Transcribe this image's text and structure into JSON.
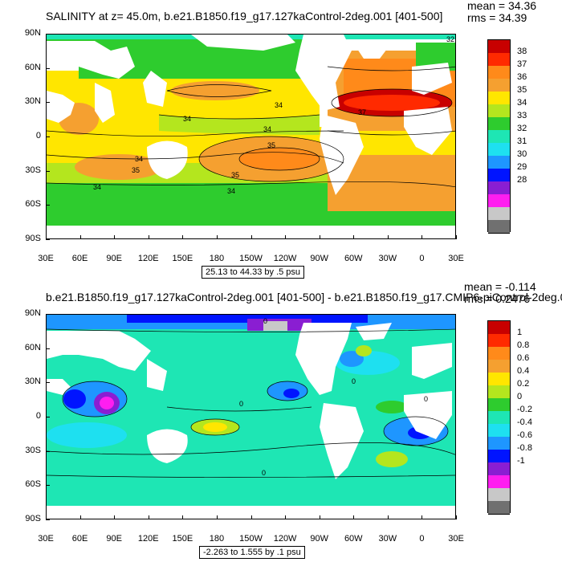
{
  "panels": [
    {
      "title": "SALINITY at z=  45.0m, b.e21.B1850.f19_g17.127kaControl-2deg.001 [401-500]",
      "mean_text": "mean = 34.36",
      "rms_text": "rms = 34.39",
      "range_text": "25.13 to 44.33 by .5 psu",
      "lat_labels": [
        "90N",
        "60N",
        "30N",
        "0",
        "30S",
        "60S",
        "90S"
      ],
      "lon_labels": [
        "30E",
        "60E",
        "90E",
        "120E",
        "150E",
        "180",
        "150W",
        "120W",
        "90W",
        "60W",
        "30W",
        "0",
        "30E"
      ],
      "contour_labels": [
        "34",
        "34",
        "34",
        "35",
        "35",
        "34",
        "35",
        "34",
        "34",
        "37",
        "32"
      ],
      "colorbar_labels": [
        "38",
        "37",
        "36",
        "35",
        "34",
        "33",
        "32",
        "31",
        "30",
        "29",
        "28"
      ],
      "colorbar_colors": [
        "#c80000",
        "#ff2a00",
        "#ff8a1a",
        "#f5a030",
        "#ffe600",
        "#b4e61e",
        "#2ecc2e",
        "#1ee6b4",
        "#1ee0f0",
        "#1e96ff",
        "#0014ff",
        "#8a1ed2",
        "#ff1ef0",
        "#c8c8c8",
        "#707070"
      ]
    },
    {
      "title": "b.e21.B1850.f19_g17.127kaControl-2deg.001 [401-500] - b.e21.B1850.f19_g17.CMIP6-piControl-2deg.0",
      "mean_text": "mean = -0.114",
      "rms_text": "rms = 0.2476",
      "range_text": "-2.263 to 1.555 by .1 psu",
      "lat_labels": [
        "90N",
        "60N",
        "30N",
        "0",
        "30S",
        "60S",
        "90S"
      ],
      "lon_labels": [
        "30E",
        "60E",
        "90E",
        "120E",
        "150E",
        "180",
        "150W",
        "120W",
        "90W",
        "60W",
        "30W",
        "0",
        "30E"
      ],
      "contour_labels": [
        "0",
        "0",
        "0",
        "0",
        "0"
      ],
      "colorbar_labels": [
        "1",
        "0.8",
        "0.6",
        "0.4",
        "0.2",
        "0",
        "-0.2",
        "-0.4",
        "-0.6",
        "-0.8",
        "-1"
      ],
      "colorbar_colors": [
        "#c80000",
        "#ff2a00",
        "#ff8a1a",
        "#f5a030",
        "#ffe600",
        "#b4e61e",
        "#2ecc2e",
        "#1ee6b4",
        "#1ee0f0",
        "#1e96ff",
        "#0014ff",
        "#8a1ed2",
        "#ff1ef0",
        "#c8c8c8",
        "#707070"
      ]
    }
  ]
}
